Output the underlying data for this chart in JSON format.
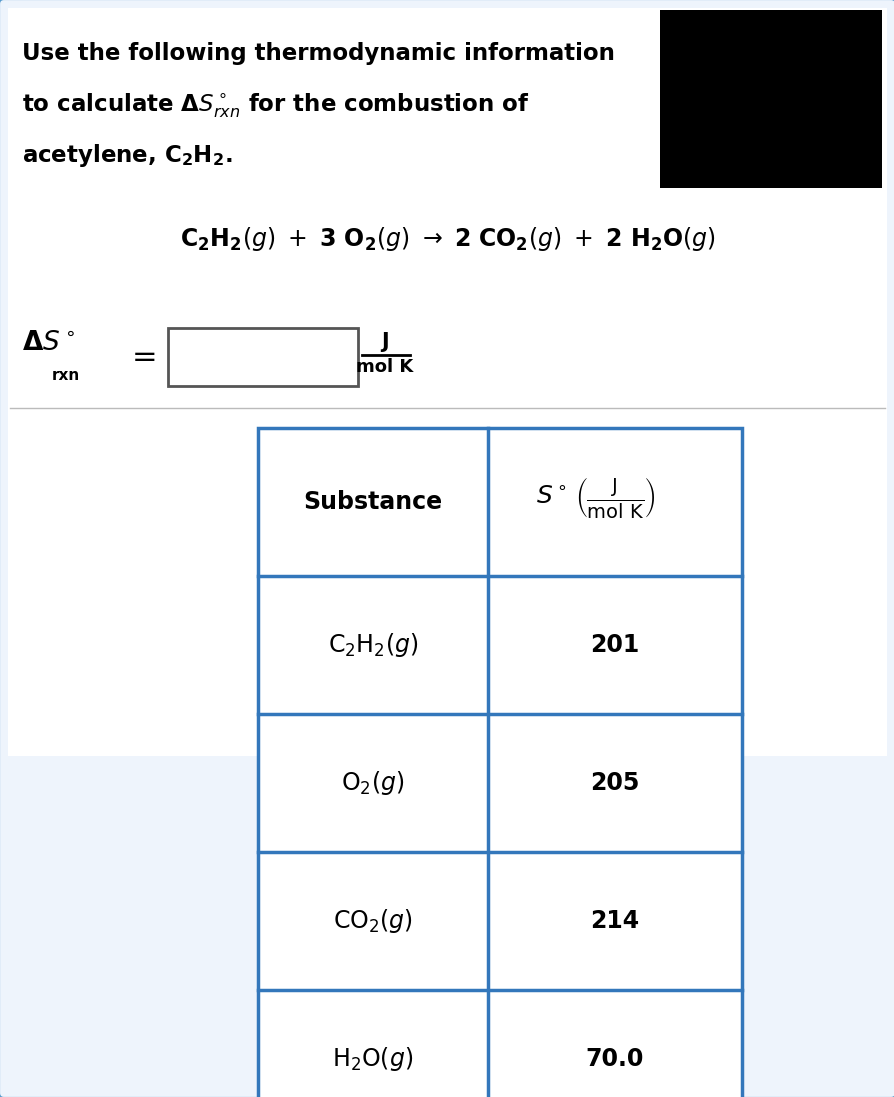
{
  "bg_color": "#eef4fc",
  "border_color": "#5599cc",
  "black_box_color": "#000000",
  "text_color": "#000000",
  "table_border_color": "#3377bb",
  "figure_width": 8.95,
  "figure_height": 10.97,
  "table_substances_latex": [
    "$\\mathrm{C_2H_2}(g)$",
    "$\\mathrm{O_2}(g)$",
    "$\\mathrm{CO_2}(g)$",
    "$\\mathrm{H_2O}(g)$"
  ],
  "table_values": [
    "201",
    "205",
    "214",
    "70.0"
  ]
}
